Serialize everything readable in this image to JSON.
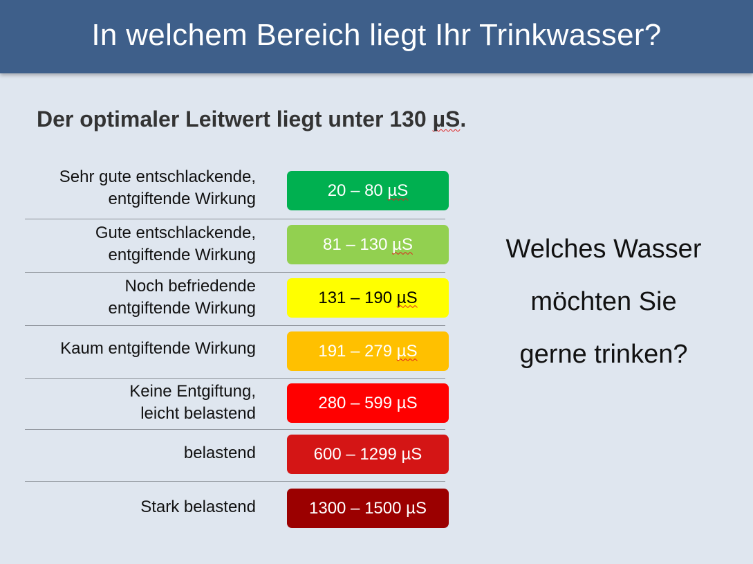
{
  "header": {
    "title": "In welchem Bereich liegt Ihr Trinkwasser?"
  },
  "subtitle": {
    "text_main": "Der optimaler Leitwert liegt unter 130 ",
    "unit": "µS",
    "period": "."
  },
  "rows": [
    {
      "label_line1": "Sehr gute entschlackende,",
      "label_line2": "entgiftende Wirkung",
      "range": "20 – 80 ",
      "unit": "µS",
      "color": "#00b050",
      "text_color": "#ffffff",
      "unit_squiggle": true
    },
    {
      "label_line1": "Gute entschlackende,",
      "label_line2": "entgiftende Wirkung",
      "range": "81 – 130 ",
      "unit": "µS",
      "color": "#92d050",
      "text_color": "#ffffff",
      "unit_squiggle": true
    },
    {
      "label_line1": "Noch befriedende ",
      "label_line2": "entgiftende Wirkung",
      "range": "131 – 190 ",
      "unit": "µS",
      "color": "#ffff00",
      "text_color": "#000000",
      "unit_squiggle": true
    },
    {
      "label_line1": "Kaum entgiftende Wirkung",
      "label_line2": "",
      "range": "191 – 279 ",
      "unit": "µS",
      "color": "#ffc000",
      "text_color": "#ffffff",
      "unit_squiggle": true
    },
    {
      "label_line1": "Keine Entgiftung,",
      "label_line2": "leicht belastend",
      "range": "280 – 599 ",
      "unit": "µS",
      "color": "#ff0000",
      "text_color": "#ffffff",
      "unit_squiggle": false
    },
    {
      "label_line1": "belastend",
      "label_line2": "",
      "range": "600 – 1299 ",
      "unit": "µS",
      "color": "#d41515",
      "text_color": "#ffffff",
      "unit_squiggle": false
    },
    {
      "label_line1": "Stark belastend",
      "label_line2": "",
      "range": "1300 – 1500 ",
      "unit": "µS",
      "color": "#9b0000",
      "text_color": "#ffffff",
      "unit_squiggle": false
    }
  ],
  "side_question": {
    "line1": "Welches Wasser",
    "line2": "möchten Sie",
    "line3": "gerne trinken?"
  }
}
